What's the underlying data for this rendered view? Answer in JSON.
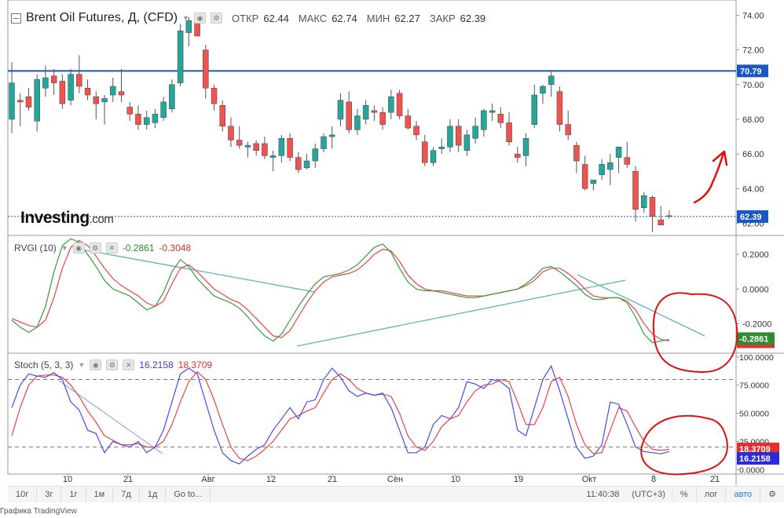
{
  "header": {
    "title": "Brent Oil Futures, Д, (CFD)",
    "open_label": "ОТКР",
    "open": "62.44",
    "high_label": "МАКС",
    "high": "62.74",
    "low_label": "МИН",
    "low": "62.27",
    "close_label": "ЗАКР",
    "close": "62.39"
  },
  "logo": {
    "main": "Investing",
    "suffix": ".com"
  },
  "indicators": {
    "rvgi": {
      "name": "RVGI (10)",
      "v1": "-0.2861",
      "v2": "-0.3048"
    },
    "stoch": {
      "name": "Stoch (5, 3, 3)",
      "v1": "16.2158",
      "v2": "18.3709"
    }
  },
  "toolbar": {
    "ranges": [
      "10г",
      "3г",
      "1г",
      "1м",
      "7д",
      "1д"
    ],
    "goto": "Go to...",
    "time": "11:40:38",
    "tz": "(UTC+3)",
    "pct": "%",
    "log": "лог",
    "auto": "авто"
  },
  "footer": {
    "text": "Графика TradingView"
  },
  "colors": {
    "up": "#26a69a",
    "down": "#ef5350",
    "resistance": "#1a56c4",
    "rvgi": "#3a9b3a",
    "rvgi_signal": "#e84545",
    "stoch_k": "#4a4ae8",
    "stoch_d": "#e84545",
    "trend": "#5fb7a6",
    "annotation": "#e01010"
  },
  "chart_data": [
    {
      "type": "candlestick",
      "title": "Brent Oil Futures, Д, (CFD)",
      "x_ticks": [
        "10",
        "21",
        "Авг",
        "12",
        "21",
        "Сен",
        "10",
        "19",
        "Окт",
        "8",
        "21"
      ],
      "y_ticks": [
        "62.00",
        "64.00",
        "66.00",
        "68.00",
        "70.00",
        "72.00",
        "74.00"
      ],
      "ylim": [
        61.3,
        74.7
      ],
      "resistance_level": 70.79,
      "resistance_label": "70.79",
      "last_price": 62.39,
      "last_price_label": "62.39",
      "candles": [
        {
          "o": 68.0,
          "h": 71.3,
          "l": 67.2,
          "c": 70.1
        },
        {
          "o": 69.1,
          "h": 69.5,
          "l": 67.6,
          "c": 69.0
        },
        {
          "o": 69.3,
          "h": 69.8,
          "l": 68.5,
          "c": 68.7
        },
        {
          "o": 67.9,
          "h": 70.6,
          "l": 67.3,
          "c": 70.3
        },
        {
          "o": 69.8,
          "h": 71.1,
          "l": 69.3,
          "c": 70.4
        },
        {
          "o": 70.5,
          "h": 70.9,
          "l": 69.4,
          "c": 70.1
        },
        {
          "o": 70.2,
          "h": 70.6,
          "l": 68.6,
          "c": 68.9
        },
        {
          "o": 69.1,
          "h": 70.9,
          "l": 68.8,
          "c": 70.6
        },
        {
          "o": 70.6,
          "h": 71.7,
          "l": 69.5,
          "c": 69.9
        },
        {
          "o": 69.8,
          "h": 70.3,
          "l": 69.1,
          "c": 69.4
        },
        {
          "o": 69.3,
          "h": 69.6,
          "l": 68.0,
          "c": 68.9
        },
        {
          "o": 69.0,
          "h": 69.4,
          "l": 67.7,
          "c": 69.2
        },
        {
          "o": 69.4,
          "h": 70.4,
          "l": 69.0,
          "c": 69.9
        },
        {
          "o": 69.6,
          "h": 70.9,
          "l": 69.0,
          "c": 69.4
        },
        {
          "o": 68.7,
          "h": 69.0,
          "l": 67.9,
          "c": 68.3
        },
        {
          "o": 68.3,
          "h": 68.8,
          "l": 67.4,
          "c": 67.7
        },
        {
          "o": 67.7,
          "h": 68.5,
          "l": 67.4,
          "c": 68.1
        },
        {
          "o": 67.8,
          "h": 68.6,
          "l": 67.5,
          "c": 68.3
        },
        {
          "o": 68.1,
          "h": 69.3,
          "l": 67.9,
          "c": 69.0
        },
        {
          "o": 68.6,
          "h": 70.3,
          "l": 68.4,
          "c": 70.0
        },
        {
          "o": 70.1,
          "h": 73.5,
          "l": 69.9,
          "c": 73.1
        },
        {
          "o": 73.0,
          "h": 73.9,
          "l": 72.2,
          "c": 73.7
        },
        {
          "o": 73.7,
          "h": 73.9,
          "l": 72.8,
          "c": 72.8
        },
        {
          "o": 72.0,
          "h": 72.3,
          "l": 69.2,
          "c": 69.8
        },
        {
          "o": 69.8,
          "h": 70.0,
          "l": 68.5,
          "c": 68.9
        },
        {
          "o": 68.8,
          "h": 69.1,
          "l": 67.3,
          "c": 67.6
        },
        {
          "o": 67.6,
          "h": 68.1,
          "l": 66.4,
          "c": 66.8
        },
        {
          "o": 66.8,
          "h": 67.6,
          "l": 66.3,
          "c": 66.5
        },
        {
          "o": 66.4,
          "h": 66.7,
          "l": 65.8,
          "c": 66.5
        },
        {
          "o": 66.6,
          "h": 66.8,
          "l": 65.9,
          "c": 66.2
        },
        {
          "o": 66.6,
          "h": 67.0,
          "l": 65.7,
          "c": 65.9
        },
        {
          "o": 65.8,
          "h": 66.2,
          "l": 65.0,
          "c": 65.9
        },
        {
          "o": 65.9,
          "h": 67.1,
          "l": 65.5,
          "c": 66.9
        },
        {
          "o": 66.9,
          "h": 67.2,
          "l": 65.6,
          "c": 65.8
        },
        {
          "o": 65.8,
          "h": 66.1,
          "l": 64.9,
          "c": 65.1
        },
        {
          "o": 65.2,
          "h": 66.0,
          "l": 65.1,
          "c": 65.6
        },
        {
          "o": 65.6,
          "h": 66.6,
          "l": 65.2,
          "c": 66.3
        },
        {
          "o": 66.3,
          "h": 67.2,
          "l": 66.1,
          "c": 67.0
        },
        {
          "o": 67.0,
          "h": 67.6,
          "l": 66.3,
          "c": 67.1
        },
        {
          "o": 68.0,
          "h": 69.5,
          "l": 67.6,
          "c": 69.1
        },
        {
          "o": 69.0,
          "h": 69.6,
          "l": 67.2,
          "c": 67.4
        },
        {
          "o": 67.4,
          "h": 68.6,
          "l": 67.1,
          "c": 68.2
        },
        {
          "o": 68.0,
          "h": 69.1,
          "l": 67.7,
          "c": 68.8
        },
        {
          "o": 68.5,
          "h": 68.8,
          "l": 67.9,
          "c": 68.4
        },
        {
          "o": 68.4,
          "h": 68.7,
          "l": 67.4,
          "c": 67.7
        },
        {
          "o": 68.4,
          "h": 69.7,
          "l": 68.0,
          "c": 69.3
        },
        {
          "o": 69.5,
          "h": 69.7,
          "l": 68.0,
          "c": 68.2
        },
        {
          "o": 68.2,
          "h": 68.6,
          "l": 67.4,
          "c": 67.5
        },
        {
          "o": 67.6,
          "h": 67.9,
          "l": 66.8,
          "c": 67.1
        },
        {
          "o": 66.7,
          "h": 67.1,
          "l": 65.3,
          "c": 65.5
        },
        {
          "o": 65.5,
          "h": 66.4,
          "l": 65.3,
          "c": 66.2
        },
        {
          "o": 66.3,
          "h": 66.9,
          "l": 66.0,
          "c": 66.4
        },
        {
          "o": 66.4,
          "h": 68.0,
          "l": 66.1,
          "c": 67.6
        },
        {
          "o": 67.6,
          "h": 68.0,
          "l": 66.1,
          "c": 66.5
        },
        {
          "o": 66.2,
          "h": 67.4,
          "l": 65.9,
          "c": 67.1
        },
        {
          "o": 66.9,
          "h": 68.1,
          "l": 66.6,
          "c": 67.6
        },
        {
          "o": 67.4,
          "h": 68.6,
          "l": 67.0,
          "c": 68.5
        },
        {
          "o": 68.4,
          "h": 68.9,
          "l": 67.9,
          "c": 68.5
        },
        {
          "o": 68.3,
          "h": 68.7,
          "l": 67.5,
          "c": 67.8
        },
        {
          "o": 67.8,
          "h": 68.4,
          "l": 66.5,
          "c": 66.7
        },
        {
          "o": 66.0,
          "h": 66.4,
          "l": 65.5,
          "c": 65.8
        },
        {
          "o": 65.9,
          "h": 67.2,
          "l": 65.3,
          "c": 66.9
        },
        {
          "o": 67.7,
          "h": 70.0,
          "l": 67.5,
          "c": 69.4
        },
        {
          "o": 69.5,
          "h": 70.0,
          "l": 68.9,
          "c": 69.9
        },
        {
          "o": 70.0,
          "h": 70.8,
          "l": 69.3,
          "c": 70.5
        },
        {
          "o": 69.6,
          "h": 69.9,
          "l": 67.3,
          "c": 67.7
        },
        {
          "o": 67.7,
          "h": 68.5,
          "l": 66.8,
          "c": 67.1
        },
        {
          "o": 66.5,
          "h": 66.7,
          "l": 64.9,
          "c": 65.6
        },
        {
          "o": 65.4,
          "h": 65.9,
          "l": 63.9,
          "c": 64.0
        },
        {
          "o": 64.3,
          "h": 64.5,
          "l": 63.9,
          "c": 64.5
        },
        {
          "o": 64.8,
          "h": 65.7,
          "l": 64.5,
          "c": 65.4
        },
        {
          "o": 65.1,
          "h": 66.0,
          "l": 64.2,
          "c": 65.5
        },
        {
          "o": 65.8,
          "h": 66.4,
          "l": 64.9,
          "c": 66.4
        },
        {
          "o": 65.8,
          "h": 66.7,
          "l": 65.2,
          "c": 65.4
        },
        {
          "o": 65.0,
          "h": 65.3,
          "l": 62.1,
          "c": 62.8
        },
        {
          "o": 62.9,
          "h": 63.8,
          "l": 62.6,
          "c": 63.6
        },
        {
          "o": 63.5,
          "h": 63.6,
          "l": 61.5,
          "c": 62.4
        },
        {
          "o": 62.2,
          "h": 63.0,
          "l": 61.9,
          "c": 61.9
        },
        {
          "o": 62.44,
          "h": 62.74,
          "l": 62.27,
          "c": 62.39
        }
      ]
    },
    {
      "type": "line",
      "title": "RVGI (10)",
      "y_ticks": [
        "-0.2000",
        "0.0000",
        "0.2000"
      ],
      "ylim": [
        -0.37,
        0.3
      ],
      "last_values": [
        "-0.2861",
        "-0.3048"
      ],
      "series": [
        {
          "name": "RVGI",
          "values": [
            -0.18,
            -0.22,
            -0.25,
            -0.22,
            -0.1,
            0.1,
            0.25,
            0.29,
            0.27,
            0.2,
            0.13,
            0.05,
            0.0,
            -0.02,
            -0.04,
            -0.08,
            -0.12,
            -0.1,
            -0.02,
            0.1,
            0.17,
            0.13,
            0.06,
            0.01,
            -0.04,
            -0.06,
            -0.08,
            -0.11,
            -0.16,
            -0.22,
            -0.27,
            -0.3,
            -0.26,
            -0.18,
            -0.1,
            -0.03,
            0.03,
            0.07,
            0.08,
            0.09,
            0.11,
            0.14,
            0.19,
            0.24,
            0.26,
            0.21,
            0.12,
            0.04,
            0.0,
            -0.01,
            -0.01,
            -0.02,
            -0.03,
            -0.04,
            -0.05,
            -0.05,
            -0.04,
            -0.03,
            -0.02,
            -0.01,
            0.0,
            0.03,
            0.07,
            0.12,
            0.13,
            0.1,
            0.06,
            0.02,
            -0.03,
            -0.06,
            -0.06,
            -0.05,
            -0.05,
            -0.08,
            -0.16,
            -0.26,
            -0.31,
            -0.3,
            -0.29
          ]
        },
        {
          "name": "Signal",
          "values": [
            -0.17,
            -0.19,
            -0.21,
            -0.22,
            -0.18,
            -0.05,
            0.12,
            0.24,
            0.28,
            0.25,
            0.19,
            0.12,
            0.06,
            0.02,
            -0.01,
            -0.04,
            -0.08,
            -0.1,
            -0.07,
            0.03,
            0.12,
            0.14,
            0.1,
            0.05,
            0.0,
            -0.03,
            -0.06,
            -0.08,
            -0.12,
            -0.17,
            -0.22,
            -0.27,
            -0.28,
            -0.24,
            -0.16,
            -0.08,
            -0.01,
            0.04,
            0.07,
            0.08,
            0.09,
            0.11,
            0.15,
            0.2,
            0.23,
            0.22,
            0.16,
            0.08,
            0.03,
            0.0,
            -0.01,
            -0.01,
            -0.02,
            -0.03,
            -0.04,
            -0.04,
            -0.04,
            -0.03,
            -0.02,
            -0.01,
            0.0,
            0.02,
            0.05,
            0.1,
            0.12,
            0.12,
            0.09,
            0.05,
            0.0,
            -0.04,
            -0.05,
            -0.05,
            -0.05,
            -0.07,
            -0.12,
            -0.2,
            -0.26,
            -0.29,
            -0.3
          ]
        }
      ]
    },
    {
      "type": "line",
      "title": "Stoch (5, 3, 3)",
      "y_ticks": [
        "0.0000",
        "25.0000",
        "50.0000",
        "75.0000",
        "100.0000"
      ],
      "ylim": [
        -4,
        102
      ],
      "levels": [
        80,
        20
      ],
      "last_values": [
        "18.3709",
        "16.2158"
      ],
      "series": [
        {
          "name": "%K",
          "values": [
            55,
            75,
            85,
            83,
            82,
            86,
            80,
            60,
            53,
            35,
            32,
            15,
            25,
            22,
            20,
            25,
            15,
            20,
            35,
            60,
            85,
            90,
            85,
            60,
            35,
            15,
            8,
            5,
            12,
            18,
            22,
            35,
            45,
            55,
            45,
            60,
            62,
            80,
            90,
            82,
            70,
            65,
            68,
            66,
            68,
            55,
            35,
            15,
            15,
            20,
            40,
            48,
            45,
            55,
            78,
            76,
            72,
            80,
            78,
            72,
            35,
            30,
            55,
            80,
            92,
            70,
            45,
            20,
            10,
            12,
            22,
            60,
            58,
            40,
            20,
            16,
            15,
            14,
            16
          ]
        },
        {
          "name": "%D",
          "values": [
            30,
            55,
            75,
            83,
            84,
            84,
            82,
            75,
            65,
            52,
            42,
            30,
            26,
            22,
            22,
            23,
            20,
            20,
            25,
            40,
            60,
            78,
            87,
            80,
            62,
            40,
            20,
            10,
            8,
            12,
            18,
            25,
            35,
            45,
            48,
            52,
            55,
            68,
            80,
            85,
            80,
            72,
            68,
            66,
            67,
            65,
            50,
            30,
            20,
            17,
            25,
            38,
            45,
            48,
            60,
            70,
            75,
            76,
            80,
            78,
            60,
            40,
            40,
            55,
            78,
            82,
            65,
            40,
            22,
            14,
            15,
            35,
            55,
            52,
            38,
            25,
            18,
            17,
            18
          ]
        }
      ]
    }
  ]
}
